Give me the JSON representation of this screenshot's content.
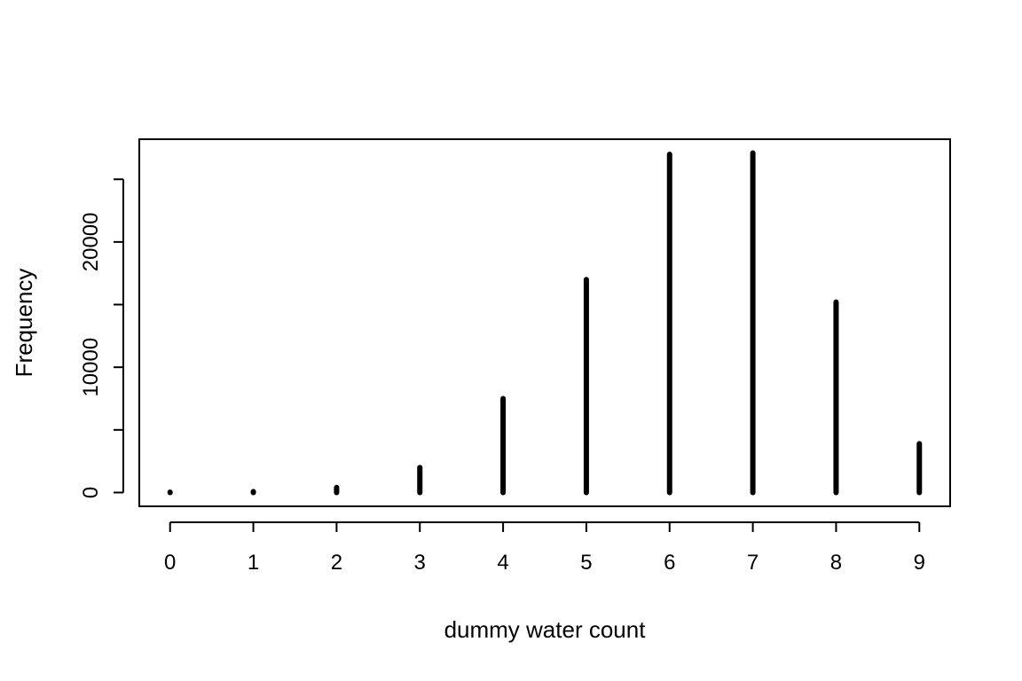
{
  "chart_data": {
    "type": "bar",
    "title": "",
    "xlabel": "dummy water count",
    "ylabel": "Frequency",
    "categories": [
      0,
      1,
      2,
      3,
      4,
      5,
      6,
      7,
      8,
      9
    ],
    "values": [
      2,
      80,
      400,
      2000,
      7500,
      17000,
      27000,
      27100,
      15200,
      3900
    ],
    "xlim": [
      -0.37,
      9.37
    ],
    "ylim": [
      -1100,
      28200
    ],
    "x_ticks": [
      0,
      1,
      2,
      3,
      4,
      5,
      6,
      7,
      8,
      9
    ],
    "y_ticks": [
      0,
      5000,
      10000,
      15000,
      20000,
      25000
    ],
    "y_tick_labels": [
      "0",
      "",
      "10000",
      "",
      "20000",
      ""
    ],
    "grid": false,
    "legend": "none",
    "colors": {
      "bars": "#000000",
      "axes": "#000000",
      "background": "#ffffff"
    }
  }
}
